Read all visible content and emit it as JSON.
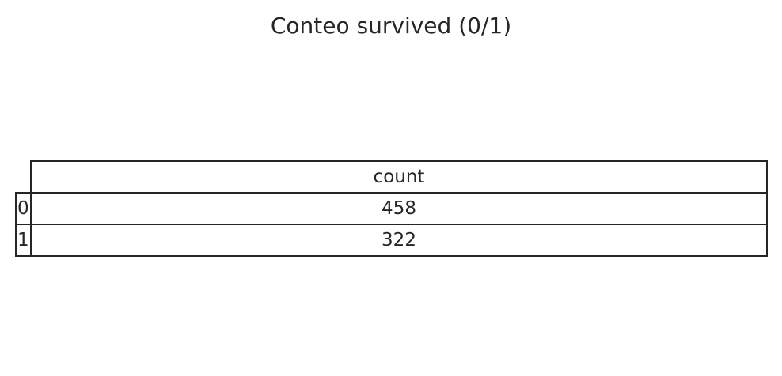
{
  "chart_data": {
    "type": "table",
    "title": "Conteo survived (0/1)",
    "columns": [
      "count"
    ],
    "row_labels": [
      "0",
      "1"
    ],
    "rows": [
      {
        "label": "0",
        "count": 458
      },
      {
        "label": "1",
        "count": 322
      }
    ]
  }
}
